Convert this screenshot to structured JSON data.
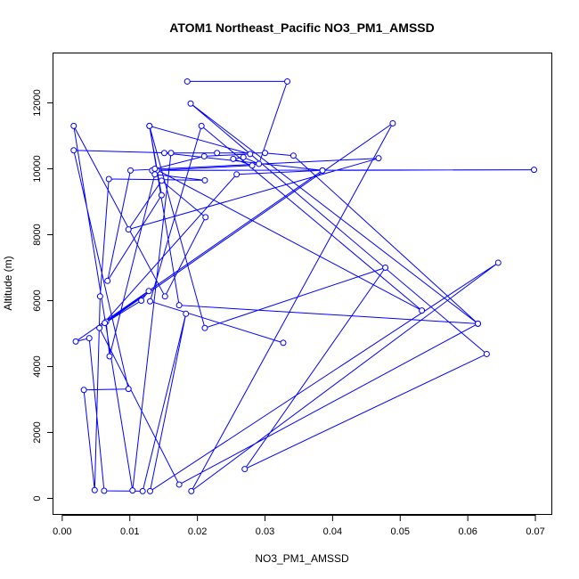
{
  "chart_data": {
    "type": "line",
    "title": "ATOM1 Northeast_Pacific NO3_PM1_AMSSD",
    "xlabel": "NO3_PM1_AMSSD",
    "ylabel": "Altitude (m)",
    "xlim": [
      -0.0013,
      0.0725
    ],
    "ylim": [
      -500,
      13500
    ],
    "x_ticks": [
      "0.00",
      "0.01",
      "0.02",
      "0.03",
      "0.04",
      "0.05",
      "0.06",
      "0.07"
    ],
    "y_ticks": [
      "0",
      "2000",
      "4000",
      "6000",
      "8000",
      "10000",
      "12000"
    ],
    "grid": false,
    "marker": "open-circle",
    "color": "#0000ff",
    "series": [
      {
        "points": [
          [
            0.0185,
            12650
          ],
          [
            0.0333,
            12650
          ],
          [
            0.0291,
            10150
          ],
          [
            0.0268,
            10350
          ],
          [
            0.0253,
            10300
          ],
          [
            0.0281,
            10100
          ],
          [
            0.014,
            9950
          ],
          [
            0.0133,
            9950
          ],
          [
            0.0698,
            9970
          ],
          [
            0.0385,
            9950
          ],
          [
            0.0151,
            10480
          ],
          [
            0.0229,
            10480
          ],
          [
            0.03,
            10480
          ],
          [
            0.0342,
            10400
          ],
          [
            0.0615,
            5300
          ],
          [
            0.019,
            11980
          ],
          [
            0.0628,
            4380
          ],
          [
            0.027,
            890
          ],
          [
            0.0478,
            7000
          ],
          [
            0.0211,
            5170
          ],
          [
            0.0129,
            11300
          ],
          [
            0.0147,
            9200
          ],
          [
            0.0067,
            6600
          ],
          [
            0.0101,
            9950
          ],
          [
            0.0468,
            10320
          ],
          [
            0.0098,
            8160
          ],
          [
            0.0147,
            9640
          ],
          [
            0.0212,
            8530
          ],
          [
            0.0152,
            6130
          ],
          [
            0.0017,
            11300
          ],
          [
            0.0104,
            240
          ],
          [
            0.0161,
            10480
          ],
          [
            0.0017,
            10560
          ],
          [
            0.0098,
            3320
          ],
          [
            0.0032,
            3290
          ],
          [
            0.0048,
            250
          ],
          [
            0.0056,
            6130
          ],
          [
            0.0069,
            9690
          ],
          [
            0.0211,
            9650
          ],
          [
            0.0137,
            9830
          ],
          [
            0.007,
            4310
          ],
          [
            0.0065,
            5360
          ],
          [
            0.0128,
            6290
          ],
          [
            0.0117,
            6000
          ],
          [
            0.0063,
            5320
          ],
          [
            0.0489,
            11380
          ],
          [
            0.0191,
            220
          ],
          [
            0.0645,
            7150
          ],
          [
            0.013,
            220
          ],
          [
            0.0183,
            5600
          ],
          [
            0.0119,
            220
          ],
          [
            0.0062,
            230
          ],
          [
            0.004,
            4860
          ],
          [
            0.002,
            4760
          ],
          [
            0.0385,
            9950
          ],
          [
            0.0258,
            9830
          ],
          [
            0.0055,
            5170
          ],
          [
            0.0173,
            420
          ],
          [
            0.0615,
            5300
          ],
          [
            0.0173,
            5860
          ],
          [
            0.0129,
            11300
          ],
          [
            0.0278,
            10450
          ],
          [
            0.021,
            10380
          ],
          [
            0.0137,
            10000
          ],
          [
            0.0532,
            5700
          ],
          [
            0.0206,
            11300
          ],
          [
            0.013,
            5980
          ],
          [
            0.0327,
            4720
          ]
        ]
      }
    ]
  }
}
